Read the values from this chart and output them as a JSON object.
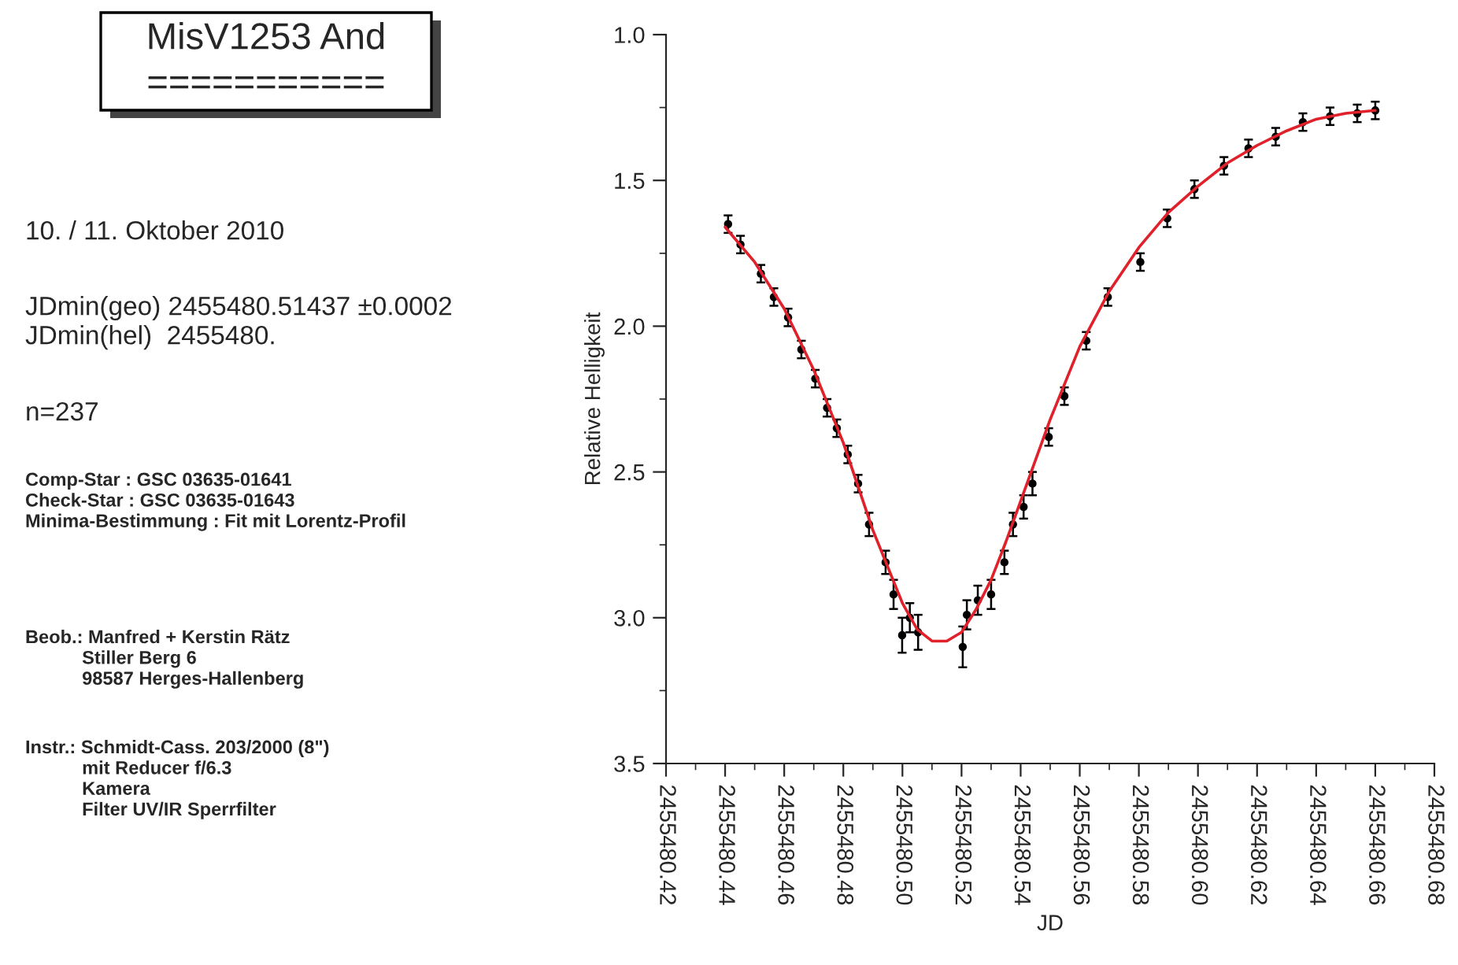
{
  "chart_data": {
    "type": "scatter",
    "title": "MisV1253 And",
    "subtitle": "===========",
    "xlabel": "JD",
    "ylabel": "Relative Helligkeit",
    "annotations": [
      "10. / 11. Oktober 2010",
      "JDmin(geo) 2455480.51437 ±0.0002\nJDmin(hel)  2455480.",
      "n=237",
      "Comp-Star : GSC 03635-01641\nCheck-Star : GSC 03635-01643\nMinima-Bestimmung : Fit mit Lorentz-Profil",
      "Beob.: Manfred + Kerstin Rätz\n           Stiller Berg 6\n           98587 Herges-Hallenberg",
      "Instr.: Schmidt-Cass. 203/2000 (8\")\n           mit Reducer f/6.3\n           Kamera\n           Filter UV/IR Sperrfilter"
    ],
    "xlim": [
      2455480.42,
      2455480.68
    ],
    "ylim": [
      3.5,
      1.0
    ],
    "xticks": [
      2455480.42,
      2455480.44,
      2455480.46,
      2455480.48,
      {
        "value": 2455480.5,
        "label": "2455480.50"
      },
      2455480.52,
      2455480.54,
      2455480.56,
      2455480.58,
      {
        "value": 2455480.6,
        "label": "2455480.60"
      },
      2455480.62,
      2455480.64,
      2455480.66,
      2455480.68,
      {
        "value": 2455480.43,
        "label": null
      },
      {
        "value": 2455480.45,
        "label": null
      },
      {
        "value": 2455480.47,
        "label": null
      },
      {
        "value": 2455480.49,
        "label": null
      },
      {
        "value": 2455480.51,
        "label": null
      },
      {
        "value": 2455480.53,
        "label": null
      },
      {
        "value": 2455480.55,
        "label": null
      },
      {
        "value": 2455480.57,
        "label": null
      },
      {
        "value": 2455480.59,
        "label": null
      },
      {
        "value": 2455480.61,
        "label": null
      },
      {
        "value": 2455480.63,
        "label": null
      },
      {
        "value": 2455480.65,
        "label": null
      },
      {
        "value": 2455480.67,
        "label": null
      }
    ],
    "yticks": [
      {
        "value": 1,
        "label": "1.0"
      },
      1.5,
      {
        "value": 2,
        "label": "2.0"
      },
      2.5,
      {
        "value": 3,
        "label": "3.0"
      },
      3.5,
      {
        "value": 1.25,
        "label": null
      },
      {
        "value": 1.75,
        "label": null
      },
      {
        "value": 2.25,
        "label": null
      },
      {
        "value": 2.75,
        "label": null
      },
      {
        "value": 3.25,
        "label": null
      }
    ],
    "grid": false,
    "legend": false,
    "series": [
      {
        "color": "#000000",
        "marker": "circle",
        "x": [
          2455480.441,
          2455480.4452,
          2455480.4521,
          2455480.4565,
          2455480.4613,
          2455480.4658,
          2455480.4705,
          2455480.4745,
          2455480.4778,
          2455480.4815,
          2455480.485,
          2455480.4887,
          2455480.4943,
          2455480.497,
          2455480.4999,
          2455480.5025,
          2455480.5053,
          2455480.5204,
          2455480.5218,
          2455480.5255,
          2455480.53,
          2455480.5345,
          2455480.5374,
          2455480.541,
          2455480.544,
          2455480.5495,
          2455480.5548,
          2455480.5622,
          2455480.5695,
          2455480.5805,
          2455480.5896,
          2455480.5988,
          2455480.6088,
          2455480.6171,
          2455480.6263,
          2455480.6355,
          2455480.6447,
          2455480.6539,
          2455480.66
        ],
        "values": [
          1.65,
          1.72,
          1.82,
          1.9,
          1.97,
          2.08,
          2.18,
          2.28,
          2.35,
          2.44,
          2.54,
          2.68,
          2.81,
          2.92,
          3.06,
          3.0,
          3.05,
          3.1,
          2.99,
          2.94,
          2.92,
          2.81,
          2.68,
          2.62,
          2.54,
          2.38,
          2.24,
          2.05,
          1.9,
          1.78,
          1.63,
          1.53,
          1.45,
          1.39,
          1.35,
          1.3,
          1.28,
          1.27,
          1.26
        ],
        "errors": [
          0.03,
          0.03,
          0.03,
          0.03,
          0.03,
          0.03,
          0.03,
          0.03,
          0.03,
          0.03,
          0.03,
          0.04,
          0.04,
          0.05,
          0.06,
          0.05,
          0.06,
          0.07,
          0.05,
          0.05,
          0.05,
          0.04,
          0.04,
          0.04,
          0.04,
          0.03,
          0.03,
          0.03,
          0.03,
          0.03,
          0.03,
          0.03,
          0.03,
          0.03,
          0.03,
          0.03,
          0.03,
          0.03,
          0.03
        ]
      },
      {
        "type": "line",
        "color": "#e0202a",
        "marker": "none",
        "line_style": "solid",
        "x": [
          2455480.44,
          2455480.45,
          2455480.46,
          2455480.47,
          2455480.48,
          2455480.49,
          2455480.5,
          2455480.505,
          2455480.51,
          2455480.515,
          2455480.52,
          2455480.525,
          2455480.53,
          2455480.535,
          2455480.54,
          2455480.55,
          2455480.56,
          2455480.57,
          2455480.58,
          2455480.59,
          2455480.6,
          2455480.61,
          2455480.62,
          2455480.63,
          2455480.64,
          2455480.65,
          2455480.66
        ],
        "values": [
          1.66,
          1.78,
          1.94,
          2.15,
          2.4,
          2.7,
          2.95,
          3.04,
          3.08,
          3.08,
          3.05,
          2.97,
          2.87,
          2.74,
          2.6,
          2.32,
          2.07,
          1.88,
          1.73,
          1.61,
          1.52,
          1.44,
          1.38,
          1.33,
          1.29,
          1.27,
          1.26
        ]
      }
    ]
  }
}
